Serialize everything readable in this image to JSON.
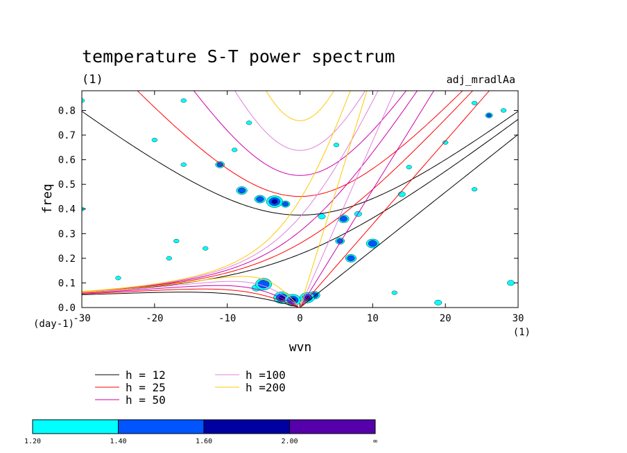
{
  "chart_data": {
    "type": "contour",
    "title": "temperature S-T power spectrum",
    "subtitle_left": "(1)",
    "subtitle_right": "adj_mradlAa",
    "xlabel": "wvn",
    "ylabel": "freq",
    "x_unit": "(1)",
    "y_unit": "(day-1)",
    "xlim": [
      -30,
      30
    ],
    "ylim": [
      0,
      0.88
    ],
    "xticks": [
      -30,
      -20,
      -10,
      0,
      10,
      20,
      30
    ],
    "yticks": [
      0.0,
      0.1,
      0.2,
      0.3,
      0.4,
      0.5,
      0.6,
      0.7,
      0.8
    ],
    "dispersion_curves": [
      {
        "name": "h = 12",
        "h": 12,
        "color": "#000000"
      },
      {
        "name": "h = 25",
        "h": 25,
        "color": "#ff0000"
      },
      {
        "name": "h = 50",
        "h": 50,
        "color": "#cc00aa"
      },
      {
        "name": "h =100",
        "h": 100,
        "color": "#e080e0"
      },
      {
        "name": "h =200",
        "h": 200,
        "color": "#ffc800"
      }
    ],
    "colorbar": {
      "labels": [
        "1.20",
        "1.40",
        "1.60",
        "2.00",
        "∞"
      ],
      "colors": [
        "#00ffff",
        "#0055ff",
        "#0000a0",
        "#5500aa"
      ]
    },
    "blobs": [
      {
        "x": -3.5,
        "y": 0.43,
        "r": 0.9,
        "level": 3
      },
      {
        "x": -5.5,
        "y": 0.44,
        "r": 0.6,
        "level": 2
      },
      {
        "x": -8,
        "y": 0.475,
        "r": 0.6,
        "level": 2
      },
      {
        "x": -2,
        "y": 0.42,
        "r": 0.5,
        "level": 2
      },
      {
        "x": -11,
        "y": 0.58,
        "r": 0.5,
        "level": 2
      },
      {
        "x": -16,
        "y": 0.58,
        "r": 0.3,
        "level": 1
      },
      {
        "x": -9,
        "y": 0.64,
        "r": 0.3,
        "level": 1
      },
      {
        "x": -7,
        "y": 0.75,
        "r": 0.3,
        "level": 1
      },
      {
        "x": -16,
        "y": 0.84,
        "r": 0.3,
        "level": 1
      },
      {
        "x": -5,
        "y": 0.095,
        "r": 0.9,
        "level": 2
      },
      {
        "x": -6,
        "y": 0.08,
        "r": 0.5,
        "level": 1
      },
      {
        "x": -2.5,
        "y": 0.04,
        "r": 0.9,
        "level": 3
      },
      {
        "x": -1,
        "y": 0.03,
        "r": 0.9,
        "level": 3
      },
      {
        "x": 1,
        "y": 0.04,
        "r": 0.8,
        "level": 3
      },
      {
        "x": 2,
        "y": 0.05,
        "r": 0.6,
        "level": 2
      },
      {
        "x": 6,
        "y": 0.36,
        "r": 0.6,
        "level": 2
      },
      {
        "x": 5.5,
        "y": 0.27,
        "r": 0.5,
        "level": 2
      },
      {
        "x": 7,
        "y": 0.2,
        "r": 0.6,
        "level": 2
      },
      {
        "x": 10,
        "y": 0.26,
        "r": 0.7,
        "level": 2
      },
      {
        "x": 8,
        "y": 0.38,
        "r": 0.4,
        "level": 1
      },
      {
        "x": 3,
        "y": 0.37,
        "r": 0.4,
        "level": 1
      },
      {
        "x": 14,
        "y": 0.46,
        "r": 0.4,
        "level": 1
      },
      {
        "x": 15,
        "y": 0.57,
        "r": 0.3,
        "level": 1
      },
      {
        "x": 20,
        "y": 0.67,
        "r": 0.3,
        "level": 1
      },
      {
        "x": 26,
        "y": 0.78,
        "r": 0.4,
        "level": 2
      },
      {
        "x": 28,
        "y": 0.8,
        "r": 0.3,
        "level": 1
      },
      {
        "x": 24,
        "y": 0.83,
        "r": 0.3,
        "level": 1
      },
      {
        "x": 29,
        "y": 0.1,
        "r": 0.4,
        "level": 1
      },
      {
        "x": 19,
        "y": 0.02,
        "r": 0.4,
        "level": 1
      },
      {
        "x": 13,
        "y": 0.06,
        "r": 0.3,
        "level": 1
      },
      {
        "x": -25,
        "y": 0.12,
        "r": 0.3,
        "level": 1
      },
      {
        "x": -30,
        "y": 0.4,
        "r": 0.3,
        "level": 1
      },
      {
        "x": -18,
        "y": 0.2,
        "r": 0.3,
        "level": 1
      },
      {
        "x": -13,
        "y": 0.24,
        "r": 0.3,
        "level": 1
      },
      {
        "x": -20,
        "y": 0.68,
        "r": 0.3,
        "level": 1
      },
      {
        "x": -30,
        "y": 0.84,
        "r": 0.3,
        "level": 1
      },
      {
        "x": 5,
        "y": 0.66,
        "r": 0.3,
        "level": 1
      },
      {
        "x": -17,
        "y": 0.27,
        "r": 0.3,
        "level": 1
      },
      {
        "x": 24,
        "y": 0.48,
        "r": 0.3,
        "level": 1
      }
    ]
  }
}
